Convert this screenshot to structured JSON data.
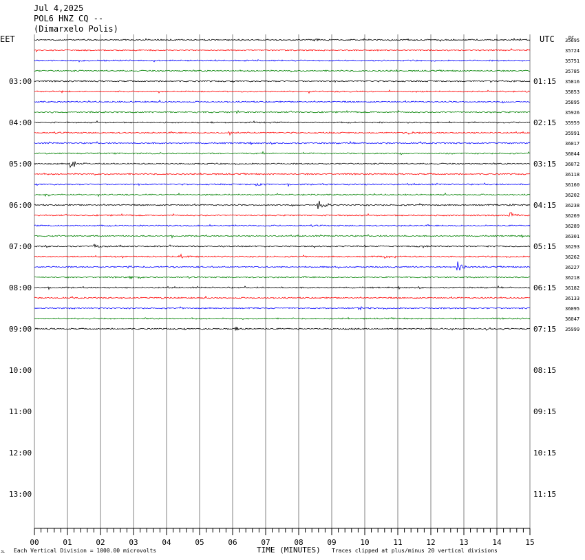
{
  "header": {
    "date": "Jul 4,2025",
    "station": "POL6 HNZ CQ --",
    "location": "(Dimarxelo Polis)"
  },
  "chart_data": {
    "type": "line",
    "title": "",
    "left_zone": "EET",
    "right_zone": "UTC",
    "corner_label": "DC",
    "xlabel": "TIME (MINUTES)",
    "xlim": [
      0,
      15
    ],
    "x_ticks": [
      "00",
      "01",
      "02",
      "03",
      "04",
      "05",
      "06",
      "07",
      "08",
      "09",
      "10",
      "11",
      "12",
      "13",
      "14",
      "15"
    ],
    "left_hour_labels": [
      "03:00",
      "04:00",
      "05:00",
      "06:00",
      "07:00",
      "08:00",
      "09:00",
      "10:00",
      "11:00",
      "12:00",
      "13:00"
    ],
    "right_hour_labels": [
      "01:15",
      "02:15",
      "03:15",
      "04:15",
      "05:15",
      "06:15",
      "07:15",
      "08:15",
      "09:15",
      "10:15",
      "11:15"
    ],
    "trace_colors": [
      "#000000",
      "#ff0000",
      "#0000ff",
      "#008000"
    ],
    "trace_offsets": [
      35695,
      35724,
      35751,
      35785,
      35816,
      35853,
      35895,
      35926,
      35959,
      35991,
      36017,
      36044,
      36072,
      36118,
      36160,
      36202,
      36238,
      36269,
      36289,
      36301,
      36293,
      36262,
      36227,
      36218,
      36182,
      36133,
      36095,
      36047,
      35999
    ],
    "events": [
      {
        "trace": 0,
        "minute": 8.4,
        "amp": 2
      },
      {
        "trace": 9,
        "minute": 5.9,
        "amp": 3
      },
      {
        "trace": 9,
        "minute": 11.3,
        "amp": 3
      },
      {
        "trace": 11,
        "minute": 6.9,
        "amp": 2
      },
      {
        "trace": 11,
        "minute": 12.5,
        "amp": 2
      },
      {
        "trace": 12,
        "minute": 1.1,
        "amp": 10
      },
      {
        "trace": 14,
        "minute": 6.7,
        "amp": 3
      },
      {
        "trace": 15,
        "minute": 0.3,
        "amp": 3
      },
      {
        "trace": 16,
        "minute": 8.6,
        "amp": 9
      },
      {
        "trace": 16,
        "minute": 14.4,
        "amp": 2
      },
      {
        "trace": 17,
        "minute": 14.4,
        "amp": 5
      },
      {
        "trace": 17,
        "minute": 13.1,
        "amp": 2
      },
      {
        "trace": 20,
        "minute": 1.8,
        "amp": 4
      },
      {
        "trace": 21,
        "minute": 4.4,
        "amp": 4
      },
      {
        "trace": 21,
        "minute": 10.6,
        "amp": 3
      },
      {
        "trace": 22,
        "minute": 12.8,
        "amp": 8
      },
      {
        "trace": 22,
        "minute": 2.8,
        "amp": 2
      },
      {
        "trace": 23,
        "minute": 2.9,
        "amp": 2
      },
      {
        "trace": 25,
        "minute": 3.8,
        "amp": 2
      },
      {
        "trace": 25,
        "minute": 13.5,
        "amp": 2
      },
      {
        "trace": 26,
        "minute": 9.8,
        "amp": 2
      },
      {
        "trace": 28,
        "minute": 6.1,
        "amp": 3
      },
      {
        "trace": 28,
        "minute": 8.0,
        "amp": 2
      }
    ],
    "footer_left": "Each Vertical Division = 1000.00 microvolts",
    "footer_right": "Traces clipped at plus/minus 20 vertical divisions",
    "corner_mark": "JL"
  }
}
